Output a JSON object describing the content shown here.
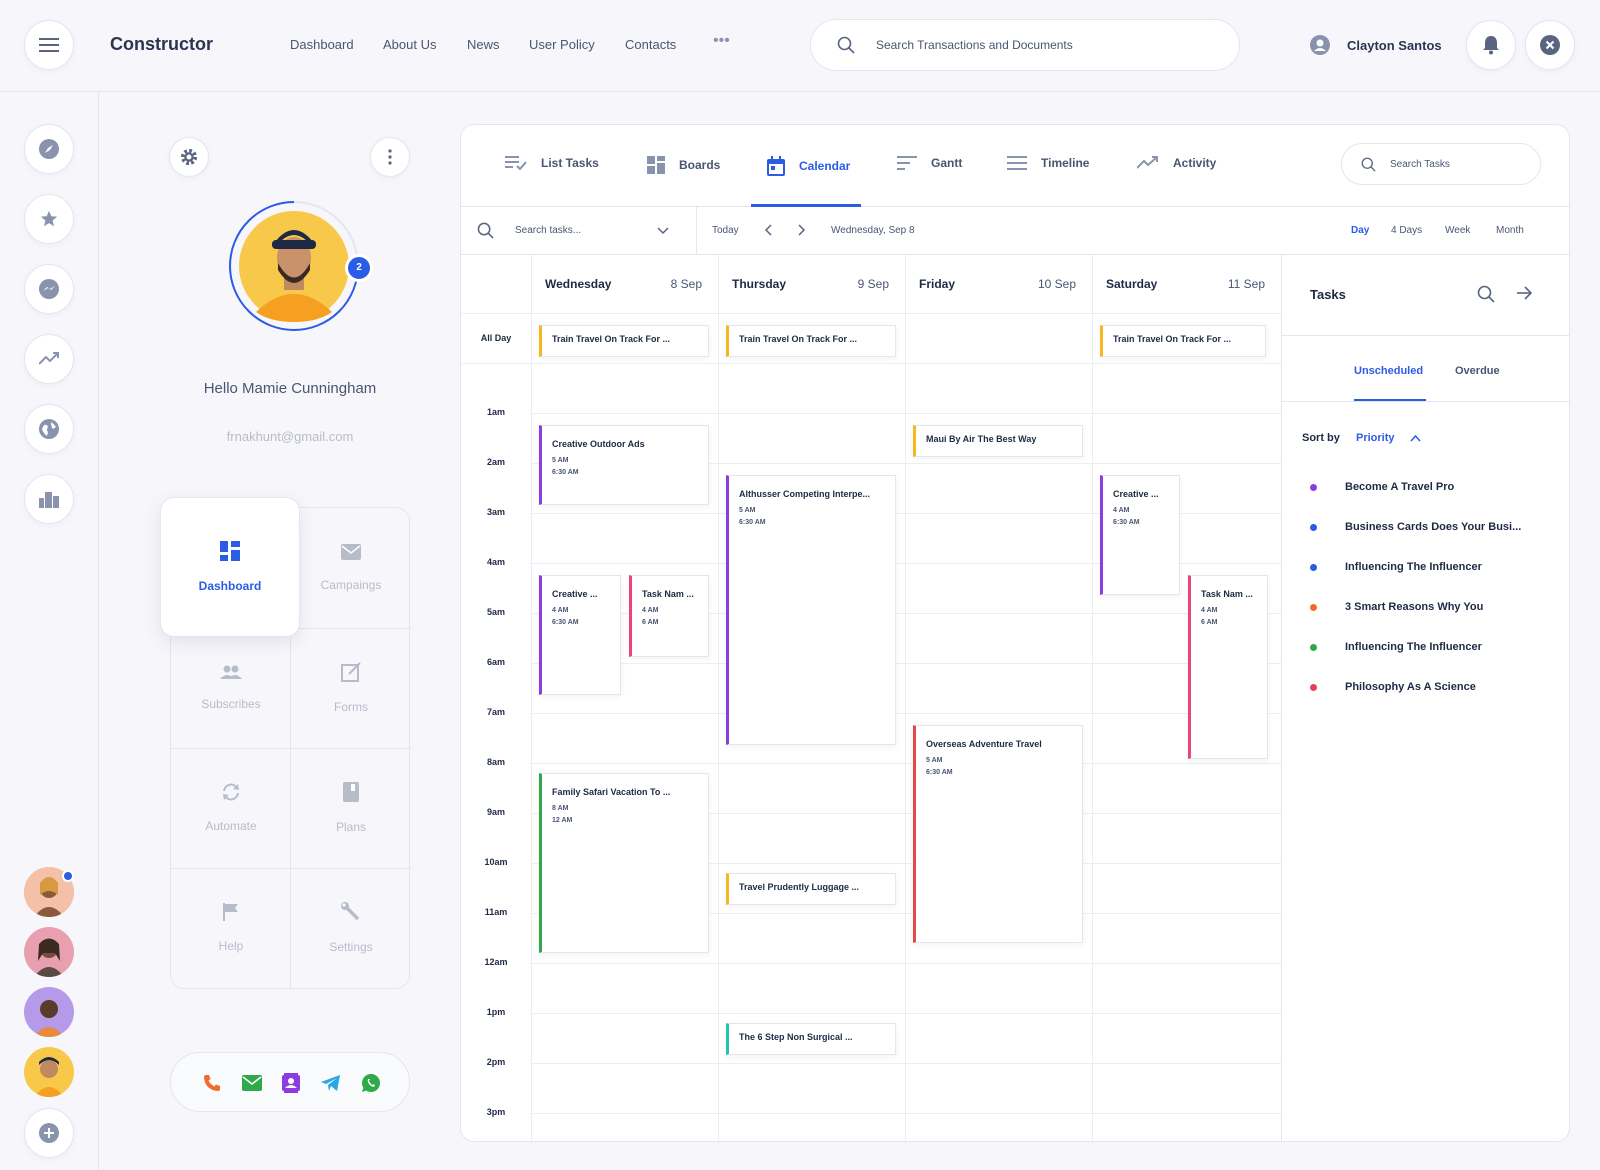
{
  "app": {
    "brand": "Constructor"
  },
  "nav": [
    "Dashboard",
    "About Us",
    "News",
    "User Policy",
    "Contacts"
  ],
  "search": {
    "placeholder": "Search Transactions and Documents"
  },
  "user": {
    "name": "Clayton Santos"
  },
  "profile": {
    "greeting": "Hello Mamie Cunningham",
    "email": "frnakhunt@gmail.com",
    "badge": "2"
  },
  "menu": [
    {
      "label": "Dashboard",
      "icon": "dashboard-icon"
    },
    {
      "label": "Campaings",
      "icon": "mail-icon"
    },
    {
      "label": "Subscribes",
      "icon": "people-icon"
    },
    {
      "label": "Forms",
      "icon": "edit-icon"
    },
    {
      "label": "Automate",
      "icon": "sync-icon"
    },
    {
      "label": "Plans",
      "icon": "book-icon"
    },
    {
      "label": "Help",
      "icon": "flag-icon"
    },
    {
      "label": "Settings",
      "icon": "wrench-icon"
    }
  ],
  "tabs": [
    "List Tasks",
    "Boards",
    "Calendar",
    "Gantt",
    "Timeline",
    "Activity"
  ],
  "search_tasks": {
    "placeholder": "Search Tasks"
  },
  "toolbar": {
    "search_placeholder": "Search tasks...",
    "today": "Today",
    "current_date": "Wednesday, Sep 8",
    "views": [
      "Day",
      "4 Days",
      "Week",
      "Month"
    ]
  },
  "calendar": {
    "allday_label": "All Day",
    "days": [
      {
        "name": "Wednesday",
        "date": "8 Sep"
      },
      {
        "name": "Thursday",
        "date": "9 Sep"
      },
      {
        "name": "Friday",
        "date": "10 Sep"
      },
      {
        "name": "Saturday",
        "date": "11 Sep"
      }
    ],
    "hours": [
      "1am",
      "2am",
      "3am",
      "4am",
      "5am",
      "6am",
      "7am",
      "8am",
      "9am",
      "10am",
      "11am",
      "12am",
      "1pm",
      "2pm",
      "3pm"
    ],
    "allday_events": [
      {
        "title": "Train Travel On Track For ...",
        "color": "#f5b820"
      },
      {
        "title": "Train Travel On Track For ...",
        "color": "#f5b820"
      },
      {
        "title": "Train Travel On Track For ...",
        "color": "#f5b820"
      }
    ],
    "events": [
      {
        "title": "Creative Outdoor Ads",
        "start": "5 AM",
        "end": "6:30 AM",
        "color": "#8a3ee0"
      },
      {
        "title": "Creative ...",
        "start": "4 AM",
        "end": "6:30 AM",
        "color": "#8a3ee0"
      },
      {
        "title": "Task Nam ...",
        "start": "4 AM",
        "end": "6 AM",
        "color": "#e8457a"
      },
      {
        "title": "Family Safari Vacation To ...",
        "start": "8 AM",
        "end": "12 AM",
        "color": "#2eaa4a"
      },
      {
        "title": "Althusser Competing Interpe...",
        "start": "5 AM",
        "end": "6:30 AM",
        "color": "#8a3ee0"
      },
      {
        "title": "Travel Prudently Luggage ...",
        "color": "#f5b820"
      },
      {
        "title": "The 6 Step Non Surgical ...",
        "color": "#22c4b4"
      },
      {
        "title": "Maui By Air The Best Way",
        "color": "#f5b820"
      },
      {
        "title": "Overseas Adventure Travel",
        "start": "5 AM",
        "end": "6:30 AM",
        "color": "#e54848"
      },
      {
        "title": "Creative ...",
        "start": "4 AM",
        "end": "6:30 AM",
        "color": "#8a3ee0"
      },
      {
        "title": "Task Nam ...",
        "start": "4 AM",
        "end": "6 AM",
        "color": "#e8457a"
      }
    ]
  },
  "tasks": {
    "title": "Tasks",
    "tabs": [
      "Unscheduled",
      "Overdue"
    ],
    "sort_label": "Sort by",
    "sort_value": "Priority",
    "items": [
      {
        "label": "Become A Travel Pro",
        "color": "#8a3ee0"
      },
      {
        "label": "Business Cards Does Your Busi...",
        "color": "#2b5ce6"
      },
      {
        "label": "Influencing The Influencer",
        "color": "#2b5ce6"
      },
      {
        "label": "3 Smart Reasons Why You",
        "color": "#f36a2c"
      },
      {
        "label": "Influencing The Influencer",
        "color": "#2eaa4a"
      },
      {
        "label": "Philosophy As A Science",
        "color": "#e83e5a"
      }
    ]
  }
}
